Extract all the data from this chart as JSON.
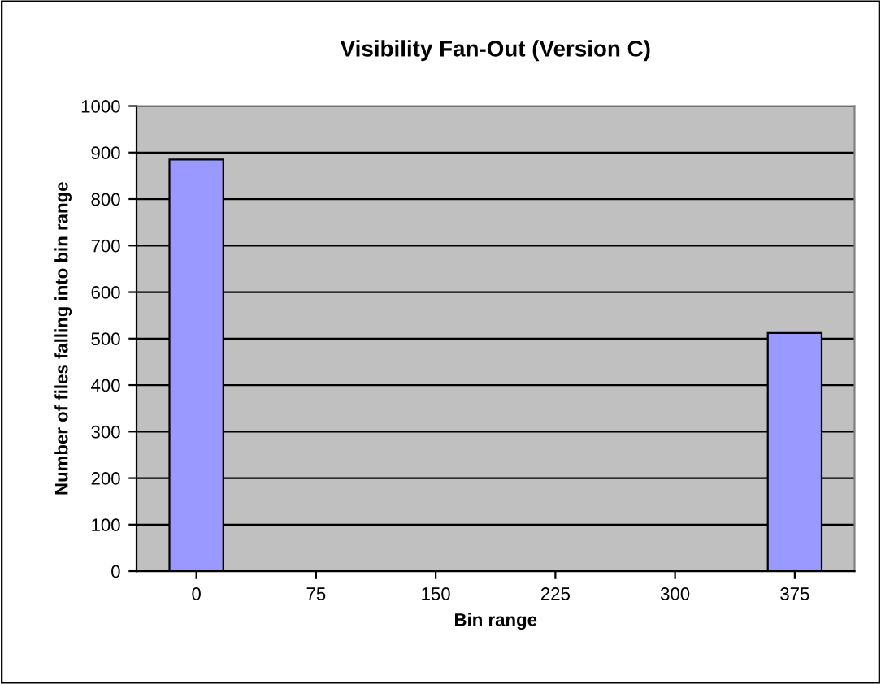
{
  "chart_data": {
    "type": "bar",
    "title": "Visibility Fan-Out (Version C)",
    "xlabel": "Bin range",
    "ylabel": "Number of files falling into bin range",
    "categories": [
      "0",
      "75",
      "150",
      "225",
      "300",
      "375"
    ],
    "values": [
      885,
      0,
      0,
      0,
      0,
      512
    ],
    "color": "#9999ff",
    "ylim": [
      0,
      1000
    ],
    "yticks": [
      0,
      100,
      200,
      300,
      400,
      500,
      600,
      700,
      800,
      900,
      1000
    ],
    "grid": "y",
    "legend": false
  }
}
